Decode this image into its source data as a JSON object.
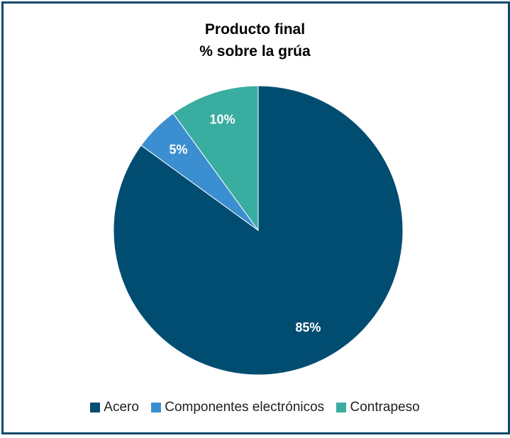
{
  "chart_data": {
    "type": "pie",
    "title": "Producto final",
    "subtitle": "% sobre la grúa",
    "legend_position": "bottom",
    "start_angle_deg": 0,
    "direction": "clockwise",
    "slices": [
      {
        "label": "Acero",
        "value": 85,
        "data_label": "85%",
        "color": "#004d71"
      },
      {
        "label": "Componentes electrónicos",
        "value": 5,
        "data_label": "5%",
        "color": "#3b8fd0"
      },
      {
        "label": "Contrapeso",
        "value": 10,
        "data_label": "10%",
        "color": "#39ad9f"
      }
    ]
  }
}
